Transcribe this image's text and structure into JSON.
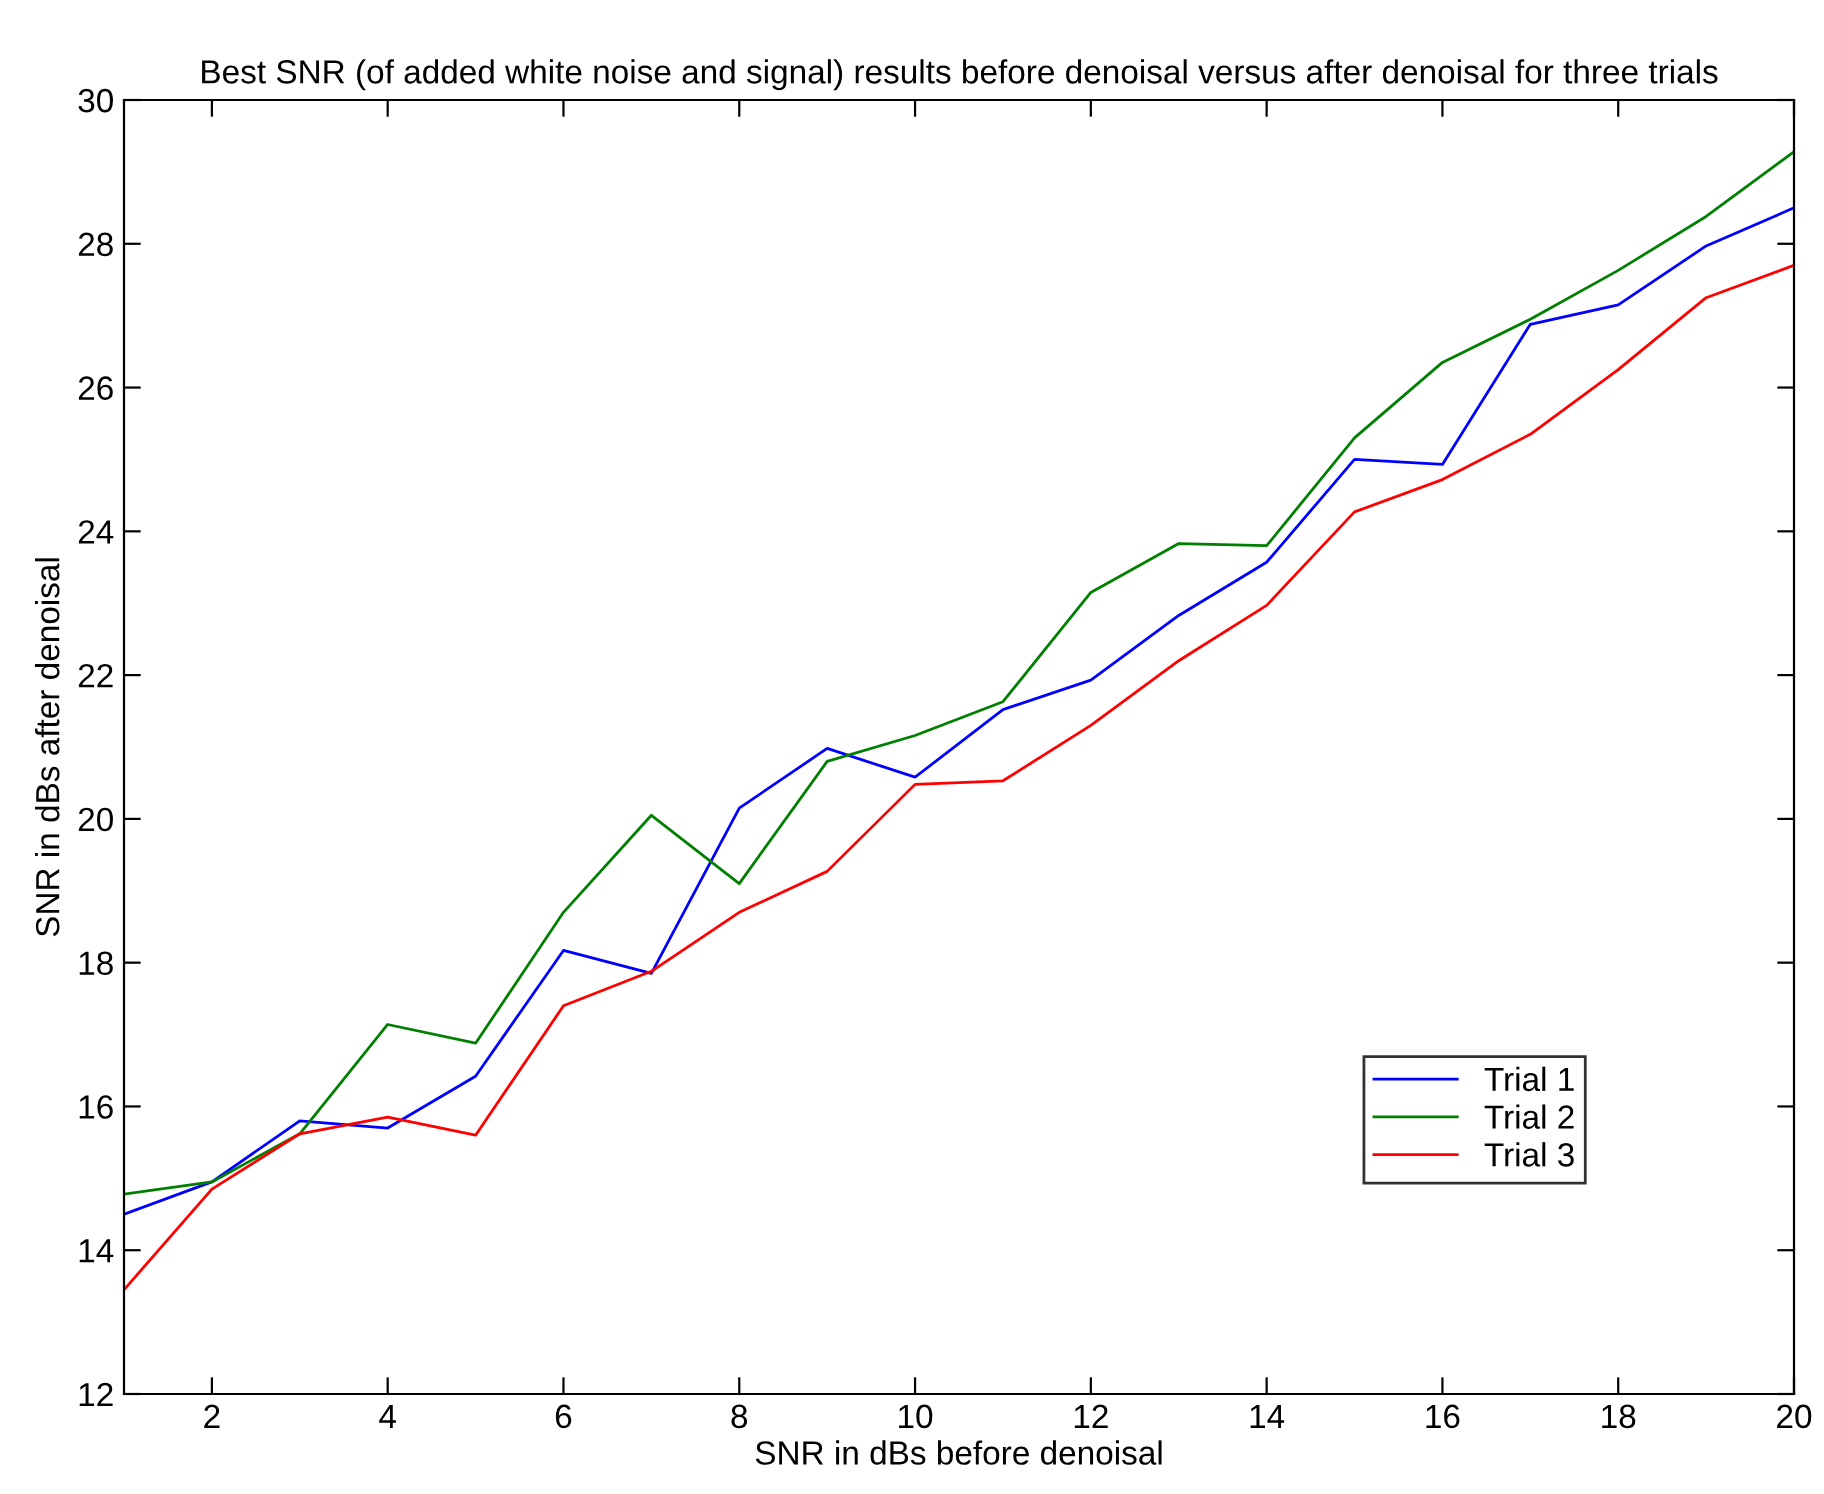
{
  "chart_data": {
    "type": "line",
    "title": "Best SNR (of added white noise and signal) results before denoisal versus after denoisal for three trials",
    "xlabel": "SNR in dBs before denoisal",
    "ylabel": "SNR in dBs after denoisal",
    "x": [
      1,
      2,
      3,
      4,
      5,
      6,
      7,
      8,
      9,
      10,
      11,
      12,
      13,
      14,
      15,
      16,
      17,
      18,
      19,
      20
    ],
    "series": [
      {
        "name": "Trial 1",
        "color": "#0000ff",
        "values": [
          14.5,
          14.95,
          15.8,
          15.7,
          16.42,
          18.17,
          17.85,
          20.15,
          20.98,
          20.58,
          21.52,
          21.93,
          22.83,
          23.57,
          25.0,
          24.93,
          26.88,
          27.15,
          27.97,
          28.5
        ]
      },
      {
        "name": "Trial 2",
        "color": "#008000",
        "values": [
          14.78,
          14.95,
          15.62,
          17.14,
          16.88,
          18.7,
          20.05,
          19.1,
          20.8,
          21.16,
          21.63,
          23.15,
          23.83,
          23.8,
          25.3,
          26.35,
          26.95,
          27.63,
          28.38,
          29.28
        ]
      },
      {
        "name": "Trial 3",
        "color": "#ff0000",
        "values": [
          13.45,
          14.85,
          15.62,
          15.85,
          15.6,
          17.4,
          17.88,
          18.7,
          19.27,
          20.48,
          20.53,
          21.3,
          22.2,
          22.97,
          24.27,
          24.72,
          25.35,
          26.25,
          27.25,
          27.7
        ]
      }
    ],
    "xlim": [
      1,
      20
    ],
    "xticks": [
      2,
      4,
      6,
      8,
      10,
      12,
      14,
      16,
      18,
      20
    ],
    "ylim": [
      12,
      30
    ],
    "yticks": [
      12,
      14,
      16,
      18,
      20,
      22,
      24,
      26,
      28,
      30
    ],
    "grid": false,
    "legend": "bottom right",
    "marker": "none",
    "line_style": "solid"
  }
}
